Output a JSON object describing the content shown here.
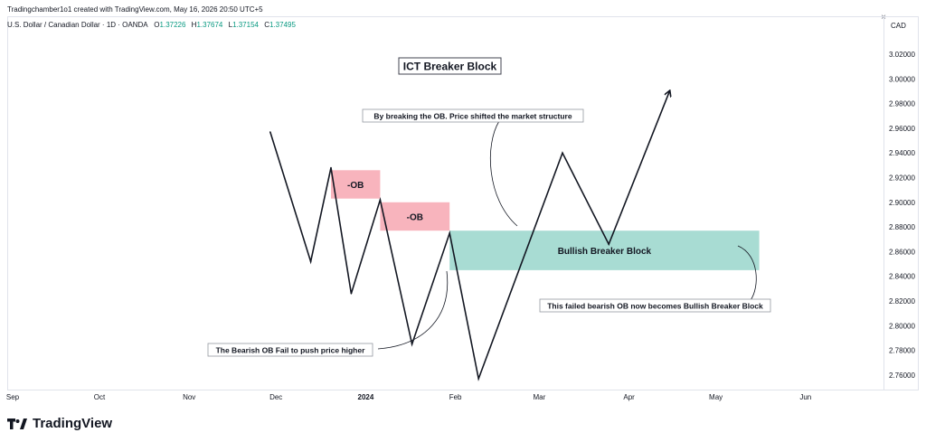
{
  "header": {
    "attribution": "Tradingchamber1o1 created with TradingView.com, May 16, 2026 20:50 UTC+5",
    "close_glyph": "×"
  },
  "legend": {
    "symbol": "U.S. Dollar / Canadian Dollar · 1D · OANDA",
    "open_label": "O",
    "open_value": "1.37226",
    "high_label": "H",
    "high_value": "1.37674",
    "low_label": "L",
    "low_value": "1.37154",
    "close_label": "C",
    "close_value": "1.37495"
  },
  "price_scale": {
    "currency": "CAD",
    "ticks": [
      "3.02000",
      "3.00000",
      "2.98000",
      "2.96000",
      "2.94000",
      "2.92000",
      "2.90000",
      "2.88000",
      "2.86000",
      "2.84000",
      "2.82000",
      "2.80000",
      "2.78000",
      "2.76000"
    ]
  },
  "time_scale": {
    "labels": [
      "Sep",
      "Oct",
      "Nov",
      "Dec",
      "2024",
      "Feb",
      "Mar",
      "Apr",
      "May",
      "Jun"
    ]
  },
  "annotations": {
    "title": "ICT Breaker Block",
    "ob1": "-OB",
    "ob2": "-OB",
    "breaker": "Bullish Breaker Block",
    "note_structure": "By breaking the OB. Price shifted the market structure",
    "note_failed": "This failed bearish OB now becomes Bullish Breaker Block",
    "note_fail_push": "The Bearish OB Fail to push price higher"
  },
  "brand": {
    "name": "TradingView"
  },
  "colors": {
    "bearish_ob": "#f8b4bd",
    "breaker": "#a8dcd3",
    "line": "#131722",
    "ohlc_value": "#089981"
  },
  "chart_data": {
    "type": "line",
    "title": "ICT Breaker Block",
    "xlabel": "",
    "ylabel": "",
    "x_ticks": [
      "Sep",
      "Oct",
      "Nov",
      "Dec",
      "2024",
      "Feb",
      "Mar",
      "Apr",
      "May",
      "Jun"
    ],
    "ylim": [
      2.745,
      3.035
    ],
    "y_ticks": [
      3.02,
      3.0,
      2.98,
      2.96,
      2.94,
      2.92,
      2.9,
      2.88,
      2.86,
      2.84,
      2.82,
      2.8,
      2.78,
      2.76
    ],
    "series": [
      {
        "points": [
          {
            "x": "2023-11-29",
            "y": 2.957
          },
          {
            "x": "2023-12-13",
            "y": 2.852
          },
          {
            "x": "2023-12-20",
            "y": 2.928
          },
          {
            "x": "2023-12-27",
            "y": 2.826
          },
          {
            "x": "2024-01-06",
            "y": 2.902
          },
          {
            "x": "2024-01-17",
            "y": 2.785
          },
          {
            "x": "2024-01-30",
            "y": 2.875
          },
          {
            "x": "2024-02-09",
            "y": 2.757
          },
          {
            "x": "2024-03-09",
            "y": 2.94
          },
          {
            "x": "2024-03-25",
            "y": 2.866
          },
          {
            "x": "2024-04-15",
            "y": 2.99
          }
        ]
      }
    ],
    "zones": [
      {
        "label": "-OB",
        "from": "2023-12-20",
        "to": "2024-01-06",
        "top": 2.926,
        "bottom": 2.903
      },
      {
        "label": "-OB",
        "from": "2024-01-06",
        "to": "2024-01-30",
        "top": 2.9,
        "bottom": 2.877
      },
      {
        "label": "Bullish Breaker Block",
        "from": "2024-01-30",
        "to": "2024-05-16",
        "top": 2.877,
        "bottom": 2.845
      }
    ]
  }
}
